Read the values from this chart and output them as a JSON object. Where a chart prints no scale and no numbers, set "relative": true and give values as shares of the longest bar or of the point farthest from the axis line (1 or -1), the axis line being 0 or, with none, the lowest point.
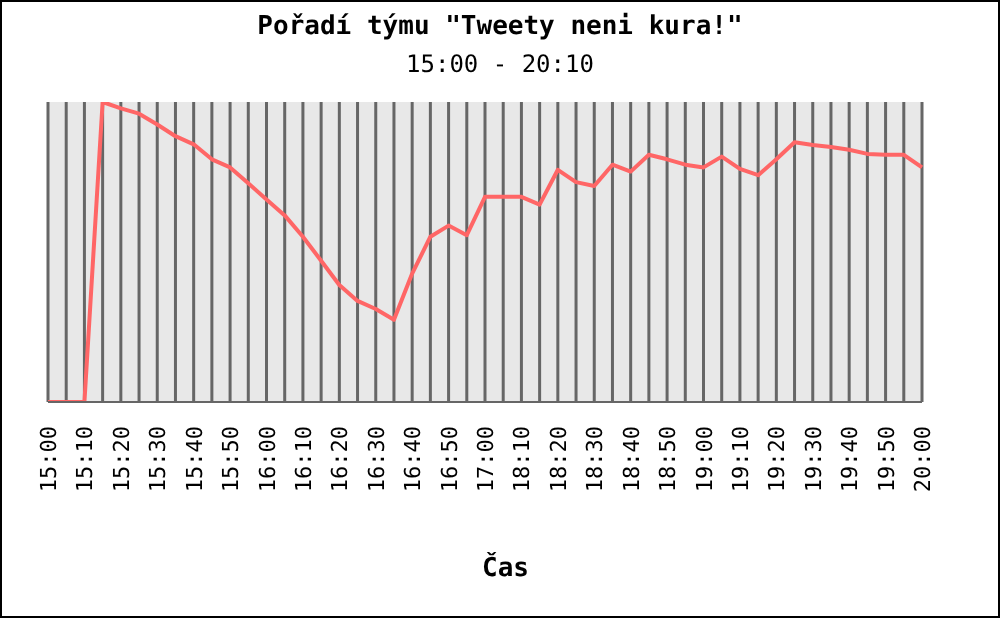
{
  "chart_data": {
    "type": "line",
    "title": "Pořadí týmu \"Tweety neni kura!\"",
    "subtitle": "15:00 - 20:10",
    "xlabel": "Čas",
    "relative": true,
    "grid": "x",
    "marker": "none",
    "line_style": "solid",
    "categories": [
      "15:00",
      null,
      "15:10",
      null,
      "15:20",
      null,
      "15:30",
      null,
      "15:40",
      null,
      "15:50",
      null,
      "16:00",
      null,
      "16:10",
      null,
      "16:20",
      null,
      "16:30",
      null,
      "16:40",
      null,
      "16:50",
      null,
      "17:00",
      null,
      "18:10",
      null,
      "18:20",
      null,
      "18:30",
      null,
      "18:40",
      null,
      "18:50",
      null,
      "19:00",
      null,
      "19:10",
      null,
      "19:20",
      null,
      "19:30",
      null,
      "19:40",
      null,
      "19:50",
      null,
      "20:00"
    ],
    "series": [
      {
        "color": "#ff6666",
        "values": [
          0,
          0,
          0,
          1,
          0.979,
          0.961,
          0.925,
          0.886,
          0.859,
          0.809,
          0.782,
          0.729,
          0.675,
          0.622,
          0.551,
          0.471,
          0.39,
          0.337,
          0.31,
          0.274,
          0.428,
          0.551,
          0.588,
          0.556,
          0.684,
          0.684,
          0.684,
          0.658,
          0.774,
          0.733,
          0.72,
          0.791,
          0.768,
          0.824,
          0.809,
          0.791,
          0.782,
          0.818,
          0.777,
          0.756,
          0.809,
          0.866,
          0.857,
          0.85,
          0.841,
          0.827,
          0.824,
          0.824,
          0.782
        ]
      }
    ]
  }
}
